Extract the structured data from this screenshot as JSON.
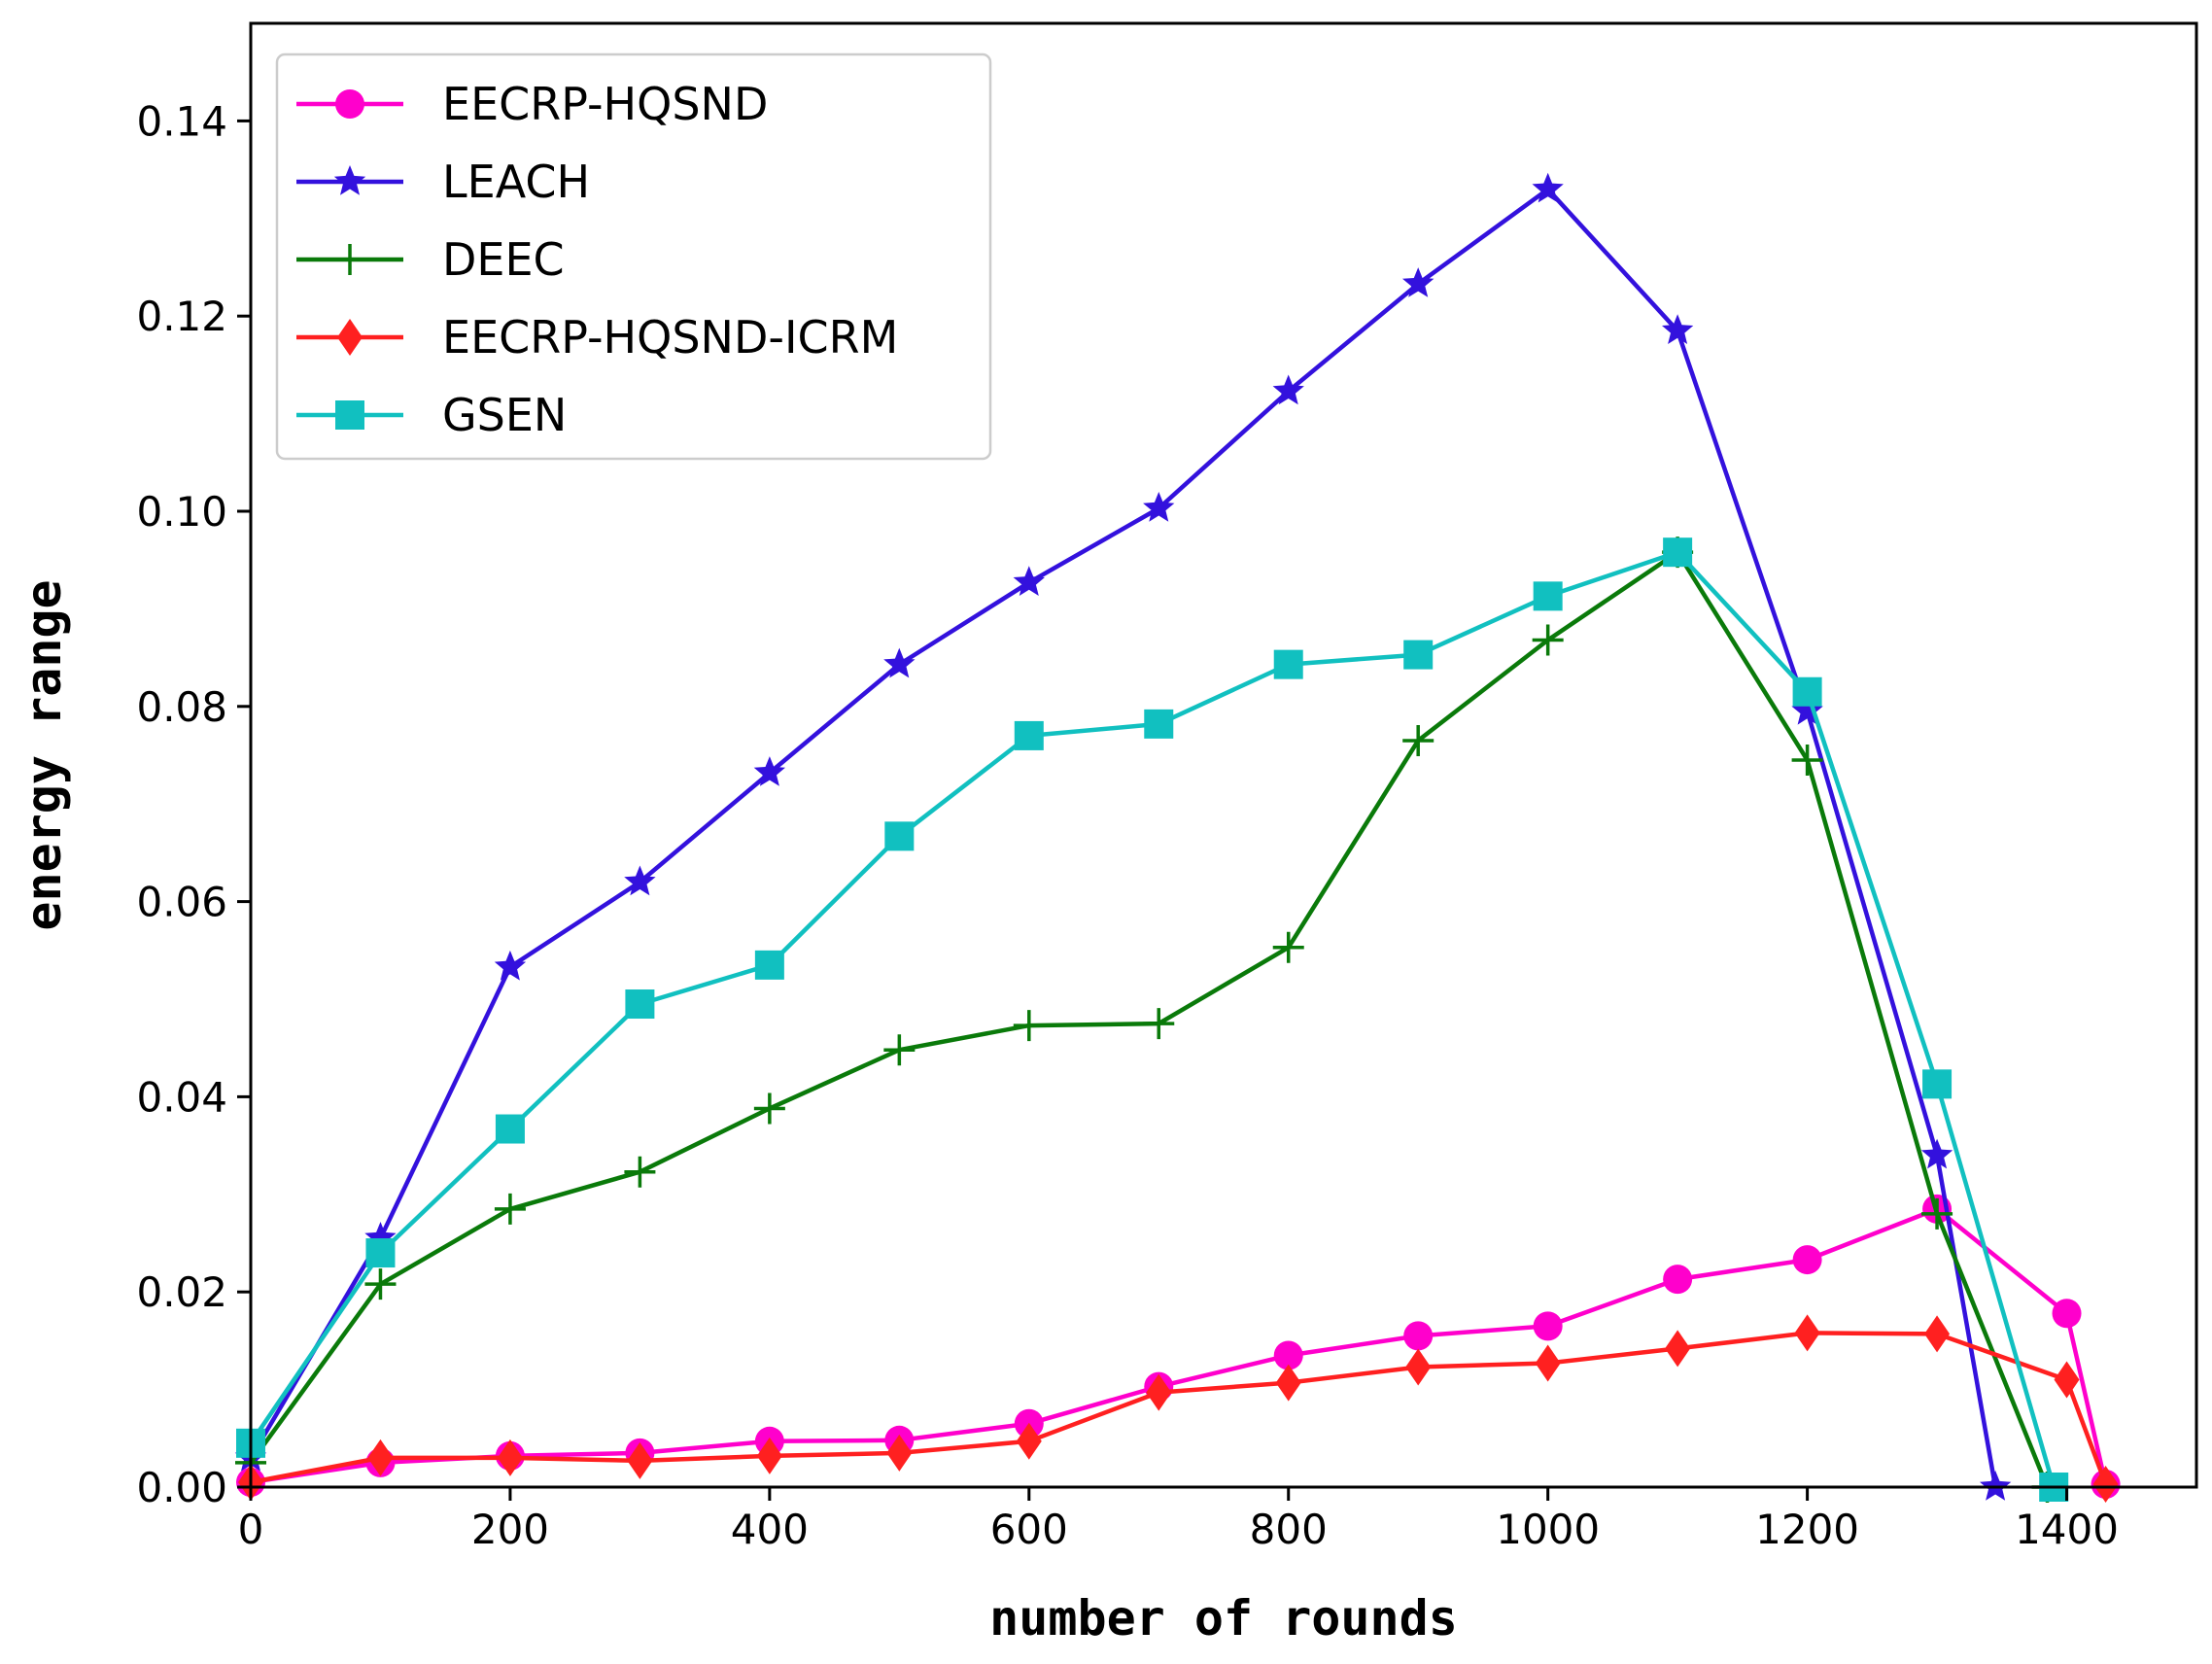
{
  "chart_data": {
    "type": "line",
    "title": "",
    "xlabel": "number of rounds",
    "ylabel": "energy range",
    "xlim": [
      0,
      1500
    ],
    "ylim": [
      0,
      0.15
    ],
    "xticks": [
      0,
      200,
      400,
      600,
      800,
      1000,
      1200,
      1400
    ],
    "xtick_labels": [
      "0",
      "200",
      "400",
      "600",
      "800",
      "1000",
      "1200",
      "1400"
    ],
    "yticks": [
      0,
      0.02,
      0.04,
      0.06,
      0.08,
      0.1,
      0.12,
      0.14
    ],
    "ytick_labels": [
      "0.00",
      "0.02",
      "0.04",
      "0.06",
      "0.08",
      "0.10",
      "0.12",
      "0.14"
    ],
    "grid": false,
    "legend_position": "top-left",
    "series": [
      {
        "name": "EECRP-HQSND",
        "color": "#ff00cc",
        "marker": "circle",
        "x": [
          0,
          100,
          200,
          300,
          400,
          500,
          600,
          700,
          800,
          900,
          1000,
          1100,
          1200,
          1300,
          1400,
          1430
        ],
        "y": [
          0.0005,
          0.0025,
          0.0032,
          0.0035,
          0.0047,
          0.0048,
          0.0065,
          0.0103,
          0.0135,
          0.0155,
          0.0165,
          0.0213,
          0.0233,
          0.0285,
          0.0178,
          0.0003
        ]
      },
      {
        "name": "LEACH",
        "color": "#3311dd",
        "marker": "star",
        "x": [
          0,
          100,
          200,
          300,
          400,
          500,
          600,
          700,
          800,
          900,
          1000,
          1100,
          1200,
          1300,
          1345
        ],
        "y": [
          0.003,
          0.0255,
          0.0533,
          0.062,
          0.0732,
          0.0843,
          0.0927,
          0.1003,
          0.1123,
          0.1233,
          0.133,
          0.1185,
          0.0795,
          0.034,
          0.0
        ]
      },
      {
        "name": "DEEC",
        "color": "#0a7a0a",
        "marker": "plus",
        "x": [
          0,
          100,
          200,
          300,
          400,
          500,
          600,
          700,
          800,
          900,
          1000,
          1100,
          1200,
          1300,
          1385
        ],
        "y": [
          0.0025,
          0.0208,
          0.0285,
          0.0323,
          0.0388,
          0.0448,
          0.0473,
          0.0475,
          0.0553,
          0.0765,
          0.0868,
          0.0958,
          0.0745,
          0.028,
          0.0
        ]
      },
      {
        "name": "EECRP-HQSND-ICRM",
        "color": "#ff2020",
        "marker": "diamond",
        "x": [
          0,
          100,
          200,
          300,
          400,
          500,
          600,
          700,
          800,
          900,
          1000,
          1100,
          1200,
          1300,
          1400,
          1430
        ],
        "y": [
          0.0005,
          0.003,
          0.003,
          0.0027,
          0.0032,
          0.0035,
          0.0047,
          0.0097,
          0.0107,
          0.0123,
          0.0127,
          0.0142,
          0.0158,
          0.0157,
          0.011,
          0.0003
        ]
      },
      {
        "name": "GSEN",
        "color": "#11c0c0",
        "marker": "square",
        "x": [
          0,
          100,
          200,
          300,
          400,
          500,
          600,
          700,
          800,
          900,
          1000,
          1100,
          1200,
          1300,
          1390
        ],
        "y": [
          0.0045,
          0.024,
          0.0367,
          0.0495,
          0.0535,
          0.0667,
          0.077,
          0.0782,
          0.0843,
          0.0853,
          0.0913,
          0.0958,
          0.0815,
          0.0413,
          0.0
        ]
      }
    ]
  }
}
